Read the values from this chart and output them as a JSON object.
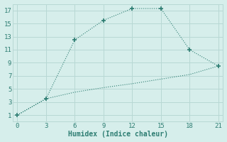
{
  "line1_x": [
    0,
    3,
    6,
    9,
    12,
    15,
    18,
    21
  ],
  "line1_y": [
    1,
    3.5,
    12.5,
    15.5,
    17.3,
    17.3,
    11,
    8.5
  ],
  "line2_x": [
    0,
    3,
    6,
    9,
    12,
    15,
    18,
    21
  ],
  "line2_y": [
    1,
    3.5,
    4.5,
    5.2,
    5.8,
    6.5,
    7.2,
    8.5
  ],
  "line_color": "#2d7d72",
  "bg_color": "#d6eeeb",
  "grid_color": "#b8d8d4",
  "xlabel": "Humidex (Indice chaleur)",
  "xlim": [
    -0.5,
    21.5
  ],
  "ylim": [
    0,
    18
  ],
  "xticks": [
    0,
    3,
    6,
    9,
    12,
    15,
    18,
    21
  ],
  "yticks": [
    1,
    3,
    5,
    7,
    9,
    11,
    13,
    15,
    17
  ],
  "tick_fontsize": 6.5,
  "xlabel_fontsize": 7
}
